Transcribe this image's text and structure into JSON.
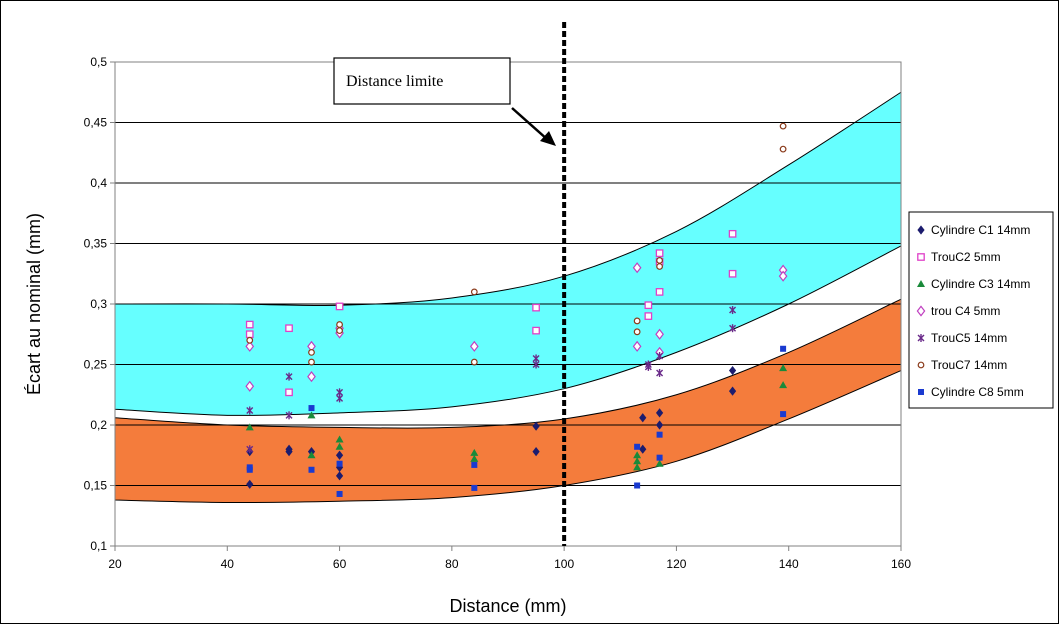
{
  "chart_data": {
    "type": "scatter",
    "title": "",
    "xlabel": "Distance (mm)",
    "ylabel": "Écart au nominal (mm)",
    "xlim": [
      20,
      160
    ],
    "ylim": [
      0.1,
      0.5
    ],
    "x_ticks": [
      "20",
      "40",
      "60",
      "80",
      "100",
      "120",
      "140",
      "160"
    ],
    "y_ticks": [
      "0,1",
      "0,15",
      "0,2",
      "0,25",
      "0,3",
      "0,35",
      "0,4",
      "0,45",
      "0,5"
    ],
    "grid": "horizontal",
    "legend_position": "right",
    "annotation": {
      "text": "Distance limite",
      "x": 100
    },
    "vertical_line_x": 100,
    "bands": [
      {
        "color": "#66ffff",
        "upper": [
          [
            20,
            0.3
          ],
          [
            40,
            0.3
          ],
          [
            60,
            0.299
          ],
          [
            80,
            0.305
          ],
          [
            100,
            0.323
          ],
          [
            120,
            0.36
          ],
          [
            140,
            0.415
          ],
          [
            160,
            0.475
          ]
        ],
        "lower": [
          [
            20,
            0.213
          ],
          [
            40,
            0.208
          ],
          [
            60,
            0.21
          ],
          [
            80,
            0.215
          ],
          [
            100,
            0.23
          ],
          [
            120,
            0.26
          ],
          [
            140,
            0.3
          ],
          [
            160,
            0.348
          ]
        ]
      },
      {
        "color": "#f47c3c",
        "upper": [
          [
            20,
            0.206
          ],
          [
            40,
            0.2
          ],
          [
            60,
            0.198
          ],
          [
            80,
            0.198
          ],
          [
            100,
            0.205
          ],
          [
            120,
            0.225
          ],
          [
            140,
            0.26
          ],
          [
            160,
            0.304
          ]
        ],
        "lower": [
          [
            20,
            0.138
          ],
          [
            40,
            0.136
          ],
          [
            60,
            0.137
          ],
          [
            80,
            0.14
          ],
          [
            100,
            0.15
          ],
          [
            120,
            0.17
          ],
          [
            140,
            0.205
          ],
          [
            160,
            0.245
          ]
        ]
      }
    ],
    "series": [
      {
        "name": "Cylindre C1 14mm",
        "marker": "diamond",
        "color": "#1c1c6e",
        "points": [
          [
            44,
            0.178
          ],
          [
            44,
            0.151
          ],
          [
            51,
            0.18
          ],
          [
            51,
            0.178
          ],
          [
            55,
            0.178
          ],
          [
            60,
            0.175
          ],
          [
            60,
            0.165
          ],
          [
            60,
            0.158
          ],
          [
            95,
            0.199
          ],
          [
            95,
            0.178
          ],
          [
            114,
            0.206
          ],
          [
            114,
            0.18
          ],
          [
            117,
            0.21
          ],
          [
            117,
            0.2
          ],
          [
            130,
            0.245
          ],
          [
            130,
            0.228
          ]
        ]
      },
      {
        "name": "TrouC2 5mm",
        "marker": "square-open",
        "color": "#e040c8",
        "points": [
          [
            44,
            0.283
          ],
          [
            44,
            0.275
          ],
          [
            51,
            0.28
          ],
          [
            51,
            0.227
          ],
          [
            60,
            0.298
          ],
          [
            95,
            0.297
          ],
          [
            95,
            0.278
          ],
          [
            115,
            0.299
          ],
          [
            115,
            0.29
          ],
          [
            117,
            0.342
          ],
          [
            117,
            0.335
          ],
          [
            117,
            0.31
          ],
          [
            130,
            0.358
          ],
          [
            130,
            0.325
          ]
        ]
      },
      {
        "name": "Cylindre C3 14mm",
        "marker": "triangle",
        "color": "#1a8a3a",
        "points": [
          [
            44,
            0.198
          ],
          [
            55,
            0.208
          ],
          [
            55,
            0.175
          ],
          [
            60,
            0.188
          ],
          [
            60,
            0.182
          ],
          [
            84,
            0.177
          ],
          [
            84,
            0.172
          ],
          [
            113,
            0.175
          ],
          [
            113,
            0.17
          ],
          [
            113,
            0.165
          ],
          [
            117,
            0.168
          ],
          [
            139,
            0.247
          ],
          [
            139,
            0.233
          ]
        ]
      },
      {
        "name": "trou C4 5mm",
        "marker": "diamond-open",
        "color": "#c040c0",
        "points": [
          [
            44,
            0.265
          ],
          [
            44,
            0.232
          ],
          [
            55,
            0.265
          ],
          [
            55,
            0.24
          ],
          [
            60,
            0.28
          ],
          [
            60,
            0.276
          ],
          [
            84,
            0.265
          ],
          [
            113,
            0.33
          ],
          [
            113,
            0.265
          ],
          [
            117,
            0.275
          ],
          [
            117,
            0.26
          ],
          [
            139,
            0.328
          ],
          [
            139,
            0.323
          ]
        ]
      },
      {
        "name": "TrouC5 14mm",
        "marker": "star",
        "color": "#6a2a8a",
        "points": [
          [
            44,
            0.212
          ],
          [
            44,
            0.18
          ],
          [
            51,
            0.24
          ],
          [
            51,
            0.208
          ],
          [
            60,
            0.227
          ],
          [
            60,
            0.222
          ],
          [
            95,
            0.255
          ],
          [
            95,
            0.25
          ],
          [
            115,
            0.25
          ],
          [
            115,
            0.248
          ],
          [
            117,
            0.257
          ],
          [
            117,
            0.243
          ],
          [
            130,
            0.295
          ],
          [
            130,
            0.28
          ]
        ]
      },
      {
        "name": "TrouC7 14mm",
        "marker": "circle-open",
        "color": "#8a3a1a",
        "points": [
          [
            44,
            0.27
          ],
          [
            55,
            0.26
          ],
          [
            55,
            0.252
          ],
          [
            60,
            0.283
          ],
          [
            60,
            0.278
          ],
          [
            84,
            0.31
          ],
          [
            84,
            0.252
          ],
          [
            113,
            0.286
          ],
          [
            113,
            0.277
          ],
          [
            117,
            0.336
          ],
          [
            117,
            0.331
          ],
          [
            139,
            0.447
          ],
          [
            139,
            0.428
          ]
        ]
      },
      {
        "name": "Cylindre C8 5mm",
        "marker": "square",
        "color": "#1a3ad0",
        "points": [
          [
            44,
            0.165
          ],
          [
            44,
            0.163
          ],
          [
            55,
            0.214
          ],
          [
            55,
            0.163
          ],
          [
            60,
            0.168
          ],
          [
            60,
            0.143
          ],
          [
            84,
            0.167
          ],
          [
            84,
            0.148
          ],
          [
            113,
            0.182
          ],
          [
            113,
            0.15
          ],
          [
            117,
            0.192
          ],
          [
            117,
            0.173
          ],
          [
            139,
            0.263
          ],
          [
            139,
            0.209
          ]
        ]
      }
    ]
  }
}
